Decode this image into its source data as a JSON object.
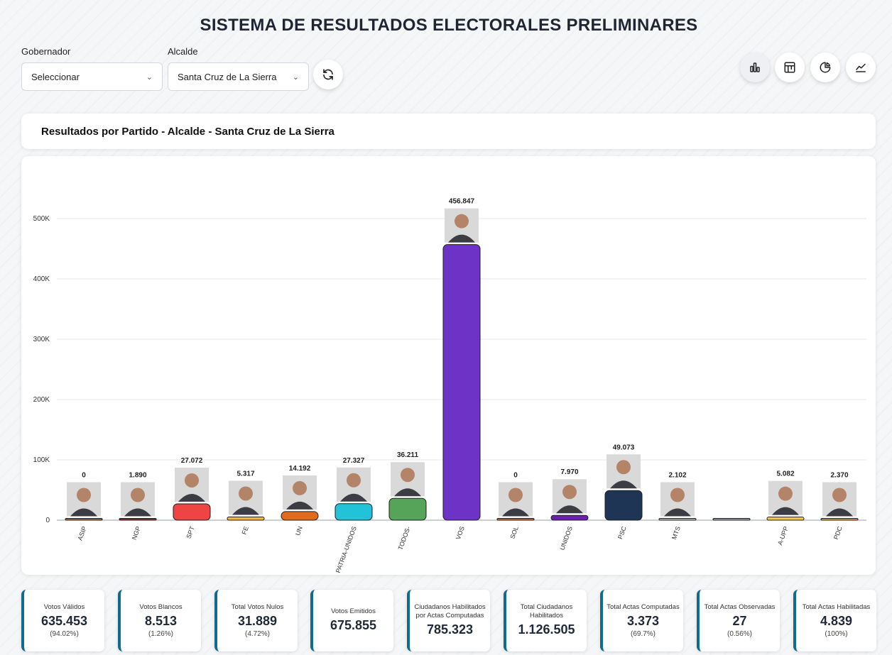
{
  "page_title": "SISTEMA DE RESULTADOS ELECTORALES PRELIMINARES",
  "filters": {
    "gobernador_label": "Gobernador",
    "gobernador_value": "Seleccionar",
    "alcalde_label": "Alcalde",
    "alcalde_value": "Santa Cruz de La Sierra"
  },
  "view_buttons": [
    {
      "icon": "bar-chart-icon",
      "active": true
    },
    {
      "icon": "grid-chart-icon",
      "active": false
    },
    {
      "icon": "pie-chart-icon",
      "active": false
    },
    {
      "icon": "line-chart-icon",
      "active": false
    }
  ],
  "chart_title": "Resultados por Partido - Alcalde - Santa Cruz de La Sierra",
  "chart_data": {
    "type": "bar",
    "categories": [
      "ASIP",
      "NGP",
      "SPT",
      "FE",
      "UN",
      "PATRIA-UNIDOS",
      "TODOS-",
      "VOS",
      "SOL",
      "UNIDOS",
      "PSC",
      "MTS",
      "",
      "A-UPP",
      "PDC"
    ],
    "values": [
      0,
      1890,
      27072,
      5317,
      14192,
      27327,
      36211,
      456847,
      0,
      7970,
      49073,
      2102,
      0,
      5082,
      2370
    ],
    "value_labels": [
      "0",
      "1.890",
      "27.072",
      "5.317",
      "14.192",
      "27.327",
      "36.211",
      "456.847",
      "0",
      "7.970",
      "49.073",
      "2.102",
      "",
      "5.082",
      "2.370"
    ],
    "colors": [
      "#b06a2a",
      "#9e2a2a",
      "#ef4444",
      "#f4b63a",
      "#e06b1f",
      "#22c3d9",
      "#56a35a",
      "#6d33c6",
      "#e2621a",
      "#6a1fb0",
      "#1f3556",
      "#b8b8b8",
      "#9aa0a6",
      "#f2c94c",
      "#f09a2a"
    ],
    "has_photo": [
      true,
      true,
      true,
      true,
      true,
      true,
      true,
      true,
      true,
      true,
      true,
      true,
      false,
      true,
      true
    ],
    "yticks": [
      0,
      100000,
      200000,
      300000,
      400000,
      500000
    ],
    "ytick_labels": [
      "0",
      "100K",
      "200K",
      "300K",
      "400K",
      "500K"
    ],
    "ylim": [
      0,
      500000
    ],
    "grid": true,
    "xlabel": "",
    "ylabel": ""
  },
  "stats": [
    {
      "label": "Votos Válidos",
      "value": "635.453",
      "pct": "(94.02%)"
    },
    {
      "label": "Votos Blancos",
      "value": "8.513",
      "pct": "(1.26%)"
    },
    {
      "label": "Total Votos Nulos",
      "value": "31.889",
      "pct": "(4.72%)"
    },
    {
      "label": "Votos Emitidos",
      "value": "675.855",
      "pct": ""
    },
    {
      "label": "Ciudadanos Habilitados por Actas Computadas",
      "value": "785.323",
      "pct": ""
    },
    {
      "label": "Total Ciudadanos Habilitados",
      "value": "1.126.505",
      "pct": ""
    },
    {
      "label": "Total Actas Computadas",
      "value": "3.373",
      "pct": "(69.7%)"
    },
    {
      "label": "Total Actas Observadas",
      "value": "27",
      "pct": "(0.56%)"
    },
    {
      "label": "Total Actas Habilitadas",
      "value": "4.839",
      "pct": "(100%)"
    }
  ]
}
